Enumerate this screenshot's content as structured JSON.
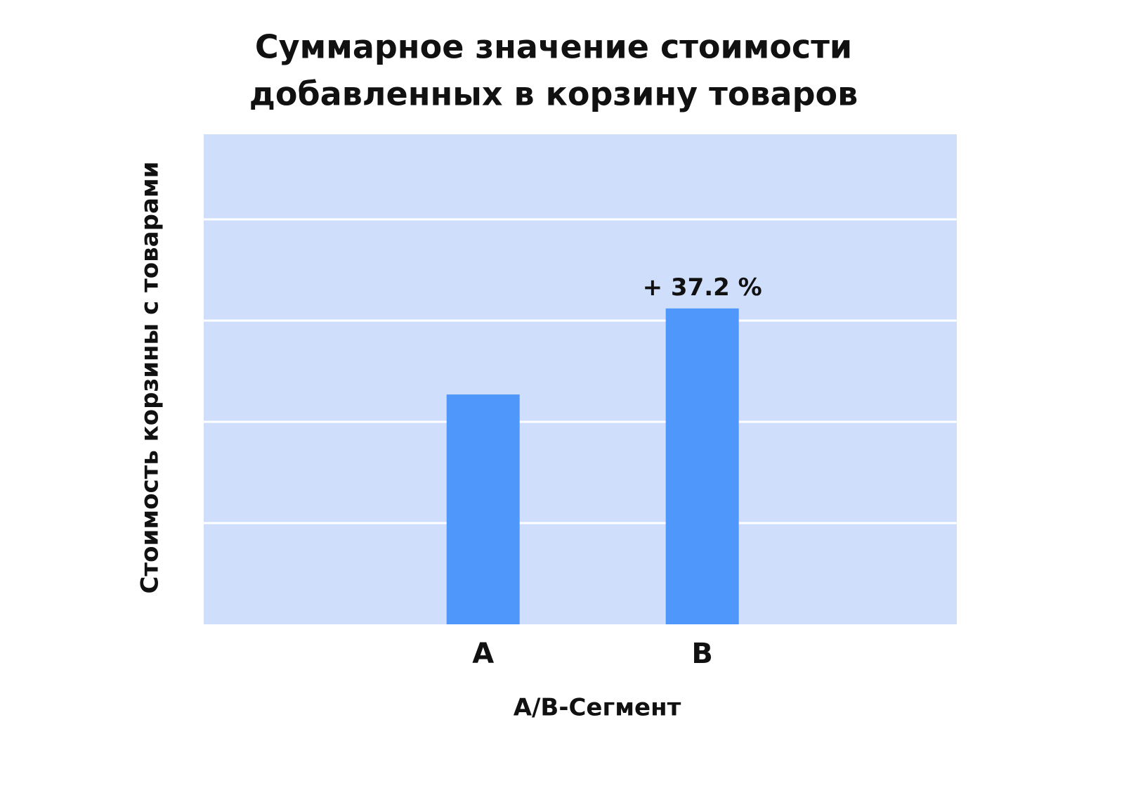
{
  "chart_data": {
    "type": "bar",
    "title": [
      "Суммарное значение стоимости",
      "добавленных в корзину товаров"
    ],
    "y_label": "Стоимость корзины с товарами",
    "x_label": "A/B-Сегмент",
    "categories": [
      "A",
      "B"
    ],
    "values": [
      2.27,
      3.12
    ],
    "annotation": "+ 37.2 %",
    "color": "#4f97fb",
    "background": "#cfdffb",
    "ylim": [
      0,
      4.84
    ],
    "yticks": [
      1,
      2,
      3,
      4
    ],
    "grid": true
  }
}
